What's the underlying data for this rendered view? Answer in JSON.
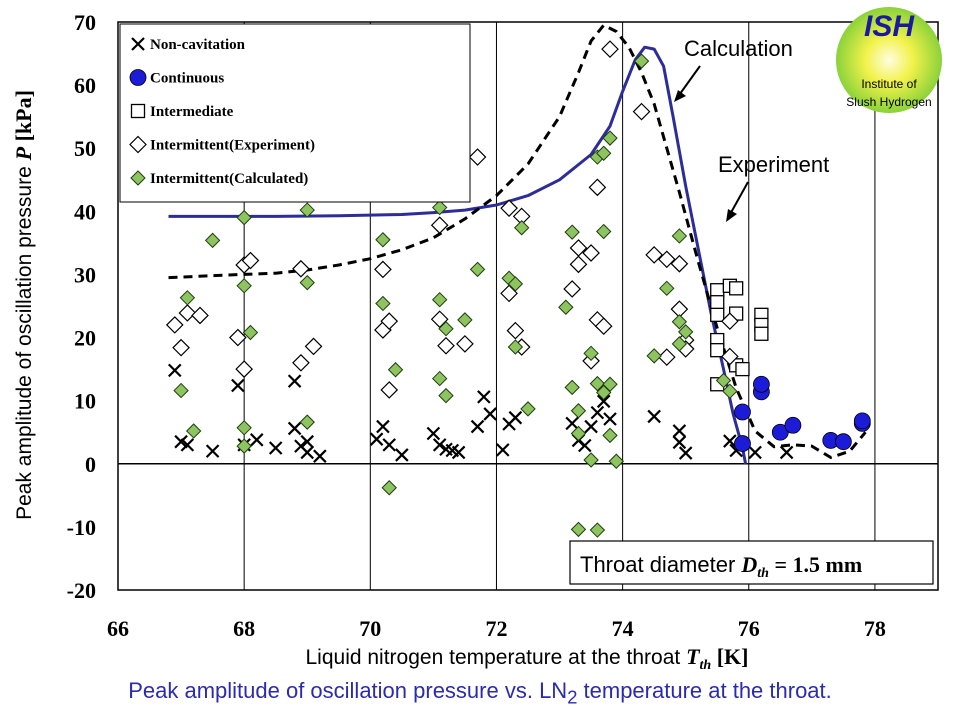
{
  "chart_data": {
    "type": "scatter",
    "title": "",
    "xlabel_main": "Liquid nitrogen temperature at the throat ",
    "xlabel_sym": "T",
    "xlabel_sub": "th",
    "xlabel_unit": " [K]",
    "ylabel_main": "Peak amplitude of oscillation pressure ",
    "ylabel_sym": "P",
    "ylabel_unit": " [kPa]",
    "xlim": [
      66,
      79
    ],
    "ylim": [
      -20,
      70
    ],
    "xticks": [
      66,
      68,
      70,
      72,
      74,
      76,
      78
    ],
    "yticks": [
      -20,
      -10,
      0,
      10,
      20,
      30,
      40,
      50,
      60,
      70
    ],
    "legend": [
      {
        "key": "noncav",
        "label": "Non-cavitation"
      },
      {
        "key": "cont",
        "label": "Continuous"
      },
      {
        "key": "inter",
        "label": "Intermediate"
      },
      {
        "key": "interexp",
        "label": "Intermittent(Experiment)"
      },
      {
        "key": "intercalc",
        "label": "Intermittent(Calculated)"
      }
    ],
    "series": [
      {
        "name": "Non-cavitation",
        "key": "noncav",
        "points": [
          [
            66.9,
            14.8
          ],
          [
            67.0,
            3.5
          ],
          [
            67.1,
            3.0
          ],
          [
            67.5,
            2.0
          ],
          [
            67.9,
            12.4
          ],
          [
            68.0,
            3.0
          ],
          [
            68.2,
            3.8
          ],
          [
            68.5,
            2.5
          ],
          [
            68.8,
            13.1
          ],
          [
            68.8,
            5.6
          ],
          [
            68.9,
            2.8
          ],
          [
            69.0,
            3.5
          ],
          [
            69.0,
            1.8
          ],
          [
            69.2,
            1.2
          ],
          [
            70.1,
            3.9
          ],
          [
            70.2,
            5.9
          ],
          [
            70.3,
            3.0
          ],
          [
            70.5,
            1.4
          ],
          [
            71.0,
            4.8
          ],
          [
            71.1,
            3.0
          ],
          [
            71.2,
            2.3
          ],
          [
            71.3,
            2.1
          ],
          [
            71.4,
            1.8
          ],
          [
            71.7,
            5.9
          ],
          [
            71.8,
            10.6
          ],
          [
            71.9,
            7.9
          ],
          [
            72.1,
            2.2
          ],
          [
            72.2,
            6.3
          ],
          [
            72.3,
            7.3
          ],
          [
            73.2,
            6.4
          ],
          [
            73.3,
            3.7
          ],
          [
            73.4,
            2.9
          ],
          [
            73.5,
            5.9
          ],
          [
            73.6,
            8.1
          ],
          [
            73.7,
            9.9
          ],
          [
            73.8,
            7.1
          ],
          [
            74.5,
            7.5
          ],
          [
            74.9,
            5.2
          ],
          [
            74.9,
            3.4
          ],
          [
            75.0,
            1.7
          ],
          [
            75.7,
            3.6
          ],
          [
            75.8,
            2.1
          ],
          [
            76.1,
            1.8
          ],
          [
            76.6,
            1.8
          ]
        ]
      },
      {
        "name": "Continuous",
        "key": "cont",
        "points": [
          [
            75.9,
            8.2
          ],
          [
            75.9,
            3.2
          ],
          [
            76.2,
            11.4
          ],
          [
            76.2,
            12.6
          ],
          [
            76.5,
            5.0
          ],
          [
            76.7,
            6.1
          ],
          [
            77.3,
            3.7
          ],
          [
            77.5,
            3.5
          ],
          [
            77.8,
            6.4
          ],
          [
            77.8,
            6.8
          ]
        ]
      },
      {
        "name": "Intermediate",
        "key": "inter",
        "points": [
          [
            75.5,
            27.5
          ],
          [
            75.5,
            25.6
          ],
          [
            75.5,
            23.6
          ],
          [
            75.5,
            19.6
          ],
          [
            75.5,
            18.0
          ],
          [
            75.5,
            12.6
          ],
          [
            75.7,
            28.2
          ],
          [
            75.8,
            27.8
          ],
          [
            75.8,
            23.8
          ],
          [
            75.8,
            15.6
          ],
          [
            75.9,
            15.0
          ],
          [
            76.2,
            23.6
          ],
          [
            76.2,
            22.0
          ],
          [
            76.2,
            20.6
          ]
        ]
      },
      {
        "name": "Intermittent(Experiment)",
        "key": "interexp",
        "points": [
          [
            66.9,
            22.0
          ],
          [
            67.0,
            18.4
          ],
          [
            67.1,
            23.9
          ],
          [
            67.3,
            23.5
          ],
          [
            67.9,
            20.0
          ],
          [
            68.0,
            31.5
          ],
          [
            68.0,
            15.0
          ],
          [
            68.1,
            32.2
          ],
          [
            68.9,
            16.0
          ],
          [
            68.9,
            30.9
          ],
          [
            69.1,
            18.6
          ],
          [
            70.2,
            30.8
          ],
          [
            70.2,
            21.2
          ],
          [
            70.3,
            11.7
          ],
          [
            70.3,
            22.6
          ],
          [
            71.1,
            37.8
          ],
          [
            71.1,
            22.9
          ],
          [
            71.2,
            18.7
          ],
          [
            71.5,
            19.0
          ],
          [
            71.7,
            48.6
          ],
          [
            72.2,
            40.5
          ],
          [
            72.2,
            27.0
          ],
          [
            72.3,
            21.1
          ],
          [
            72.4,
            39.2
          ],
          [
            72.4,
            18.5
          ],
          [
            73.2,
            27.7
          ],
          [
            73.3,
            34.2
          ],
          [
            73.3,
            31.6
          ],
          [
            73.5,
            33.4
          ],
          [
            73.5,
            16.3
          ],
          [
            73.6,
            22.8
          ],
          [
            73.6,
            43.8
          ],
          [
            73.7,
            21.8
          ],
          [
            73.8,
            65.7
          ],
          [
            74.3,
            55.8
          ],
          [
            74.5,
            33.1
          ],
          [
            74.7,
            32.4
          ],
          [
            74.7,
            16.9
          ],
          [
            74.9,
            24.5
          ],
          [
            74.9,
            31.7
          ],
          [
            75.0,
            19.6
          ],
          [
            75.0,
            18.2
          ],
          [
            75.7,
            17.0
          ],
          [
            75.7,
            22.6
          ]
        ]
      },
      {
        "name": "Intermittent(Calculated)",
        "key": "intercalc",
        "points": [
          [
            67.0,
            11.6
          ],
          [
            67.1,
            26.3
          ],
          [
            67.2,
            5.2
          ],
          [
            67.5,
            35.4
          ],
          [
            68.0,
            39.0
          ],
          [
            68.0,
            28.2
          ],
          [
            68.0,
            5.7
          ],
          [
            68.0,
            2.8
          ],
          [
            68.1,
            20.8
          ],
          [
            69.0,
            40.2
          ],
          [
            69.0,
            28.7
          ],
          [
            69.0,
            6.6
          ],
          [
            70.2,
            35.5
          ],
          [
            70.2,
            25.4
          ],
          [
            70.3,
            -3.8
          ],
          [
            70.4,
            14.9
          ],
          [
            71.1,
            26.0
          ],
          [
            71.1,
            13.5
          ],
          [
            71.2,
            10.8
          ],
          [
            71.1,
            40.6
          ],
          [
            71.2,
            21.4
          ],
          [
            71.5,
            22.8
          ],
          [
            71.7,
            30.8
          ],
          [
            72.2,
            29.4
          ],
          [
            72.3,
            28.5
          ],
          [
            72.3,
            18.5
          ],
          [
            72.4,
            37.4
          ],
          [
            72.5,
            8.7
          ],
          [
            73.1,
            24.8
          ],
          [
            73.2,
            36.7
          ],
          [
            73.2,
            12.1
          ],
          [
            73.3,
            8.4
          ],
          [
            73.3,
            4.8
          ],
          [
            73.3,
            -10.4
          ],
          [
            73.5,
            17.5
          ],
          [
            73.5,
            0.6
          ],
          [
            73.6,
            48.6
          ],
          [
            73.6,
            12.7
          ],
          [
            73.6,
            -10.5
          ],
          [
            73.7,
            36.8
          ],
          [
            73.7,
            49.2
          ],
          [
            73.7,
            11.3
          ],
          [
            73.8,
            51.6
          ],
          [
            73.8,
            12.6
          ],
          [
            73.8,
            4.5
          ],
          [
            73.9,
            0.4
          ],
          [
            74.3,
            63.8
          ],
          [
            74.5,
            17.1
          ],
          [
            74.7,
            27.8
          ],
          [
            74.9,
            36.1
          ],
          [
            74.9,
            22.5
          ],
          [
            74.9,
            19.0
          ],
          [
            75.0,
            20.9
          ],
          [
            75.6,
            13.2
          ],
          [
            75.7,
            11.5
          ]
        ]
      }
    ],
    "curves": [
      {
        "name": "Calculation",
        "style": "solid",
        "color": "#2d2d9a",
        "points": [
          [
            66.8,
            39.2
          ],
          [
            67.5,
            39.2
          ],
          [
            68.5,
            39.2
          ],
          [
            69.5,
            39.3
          ],
          [
            70.5,
            39.5
          ],
          [
            71.0,
            39.8
          ],
          [
            71.5,
            40.2
          ],
          [
            72.0,
            41.0
          ],
          [
            72.5,
            42.5
          ],
          [
            73.0,
            45.0
          ],
          [
            73.5,
            49.0
          ],
          [
            73.8,
            53.5
          ],
          [
            74.0,
            59.0
          ],
          [
            74.2,
            64.0
          ],
          [
            74.35,
            66.0
          ],
          [
            74.5,
            65.7
          ],
          [
            74.65,
            63.0
          ],
          [
            74.8,
            55.0
          ],
          [
            75.0,
            44.0
          ],
          [
            75.2,
            34.0
          ],
          [
            75.4,
            24.0
          ],
          [
            75.6,
            15.0
          ],
          [
            75.75,
            8.0
          ],
          [
            75.9,
            2.5
          ],
          [
            75.95,
            0.0
          ]
        ]
      },
      {
        "name": "Experiment",
        "style": "dashed",
        "color": "#000000",
        "points": [
          [
            66.8,
            29.5
          ],
          [
            67.5,
            29.8
          ],
          [
            68.0,
            30.0
          ],
          [
            68.5,
            30.2
          ],
          [
            69.0,
            30.7
          ],
          [
            69.5,
            31.5
          ],
          [
            70.0,
            32.5
          ],
          [
            70.5,
            33.9
          ],
          [
            71.0,
            35.8
          ],
          [
            71.5,
            38.8
          ],
          [
            72.0,
            42.5
          ],
          [
            72.5,
            47.5
          ],
          [
            73.0,
            55.0
          ],
          [
            73.3,
            62.0
          ],
          [
            73.5,
            67.0
          ],
          [
            73.7,
            69.5
          ],
          [
            73.9,
            68.5
          ],
          [
            74.1,
            66.0
          ],
          [
            74.3,
            62.0
          ],
          [
            74.5,
            57.0
          ],
          [
            74.7,
            50.0
          ],
          [
            74.9,
            43.0
          ],
          [
            75.2,
            32.0
          ],
          [
            75.5,
            21.5
          ],
          [
            75.8,
            12.0
          ],
          [
            76.1,
            5.2
          ],
          [
            76.4,
            2.7
          ],
          [
            76.7,
            3.0
          ],
          [
            77.0,
            2.8
          ],
          [
            77.3,
            1.0
          ],
          [
            77.6,
            2.0
          ],
          [
            77.85,
            5.0
          ]
        ]
      }
    ],
    "annotations": {
      "calculation_label": "Calculation",
      "experiment_label": "Experiment",
      "throat_text": "Throat diameter ",
      "throat_sym": "D",
      "throat_sub": "th",
      "throat_value": " = 1.5 mm"
    }
  },
  "logo": {
    "main": "ISH",
    "line1": "Institute of",
    "line2": "Slush Hydrogen"
  },
  "caption": {
    "before": "Peak amplitude of oscillation pressure vs. LN",
    "sub": "2",
    "after": " temperature at the throat."
  },
  "colors": {
    "continuous": "#1c1cd8",
    "calculated_fill": "#8dc460",
    "calculation_curve": "#2d2d9a",
    "caption": "#2b2bb0"
  }
}
